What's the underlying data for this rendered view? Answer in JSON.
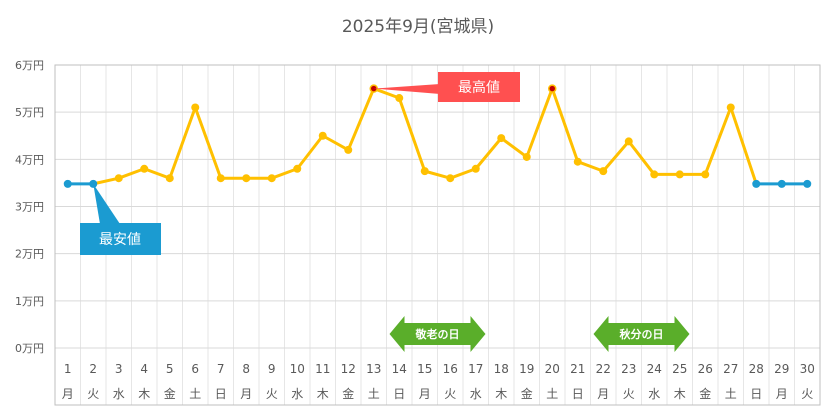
{
  "chart_data": {
    "type": "line",
    "title": "2025年9月(宮城県)",
    "xlabel": "",
    "ylabel": "",
    "ylim": [
      0,
      60000
    ],
    "y_ticks": [
      "0万円",
      "1万円",
      "2万円",
      "3万円",
      "4万円",
      "5万円",
      "6万円"
    ],
    "days": [
      "1",
      "2",
      "3",
      "4",
      "5",
      "6",
      "7",
      "8",
      "9",
      "10",
      "11",
      "12",
      "13",
      "14",
      "15",
      "16",
      "17",
      "18",
      "19",
      "20",
      "21",
      "22",
      "23",
      "24",
      "25",
      "26",
      "27",
      "28",
      "29",
      "30"
    ],
    "weekdays": [
      "月",
      "火",
      "水",
      "木",
      "金",
      "土",
      "日",
      "月",
      "火",
      "水",
      "木",
      "金",
      "土",
      "日",
      "月",
      "火",
      "水",
      "木",
      "金",
      "土",
      "日",
      "月",
      "火",
      "水",
      "木",
      "金",
      "土",
      "日",
      "月",
      "火"
    ],
    "values": [
      34800,
      34800,
      36000,
      38000,
      36000,
      51000,
      36000,
      36000,
      36000,
      38000,
      45000,
      42000,
      55000,
      53000,
      37500,
      36000,
      38000,
      44500,
      40500,
      55000,
      39500,
      37500,
      43800,
      36800,
      36800,
      36800,
      51000,
      34800,
      34800,
      34800
    ],
    "series_colors": {
      "normal": "#FFC000",
      "lowest": "#1B9BD1",
      "highest_marker": "#C00000"
    },
    "lowest_days": [
      1,
      2,
      28,
      29,
      30
    ],
    "highest_days": [
      13,
      20
    ],
    "grid": true,
    "callouts": {
      "highest": {
        "label": "最高値",
        "color": "#FF5050"
      },
      "lowest": {
        "label": "最安値",
        "color": "#1B9BD1"
      }
    },
    "holidays": [
      {
        "label": "敬老の日",
        "day": 15,
        "color": "#5AAE2A"
      },
      {
        "label": "秋分の日",
        "day": 23,
        "color": "#5AAE2A"
      }
    ]
  }
}
